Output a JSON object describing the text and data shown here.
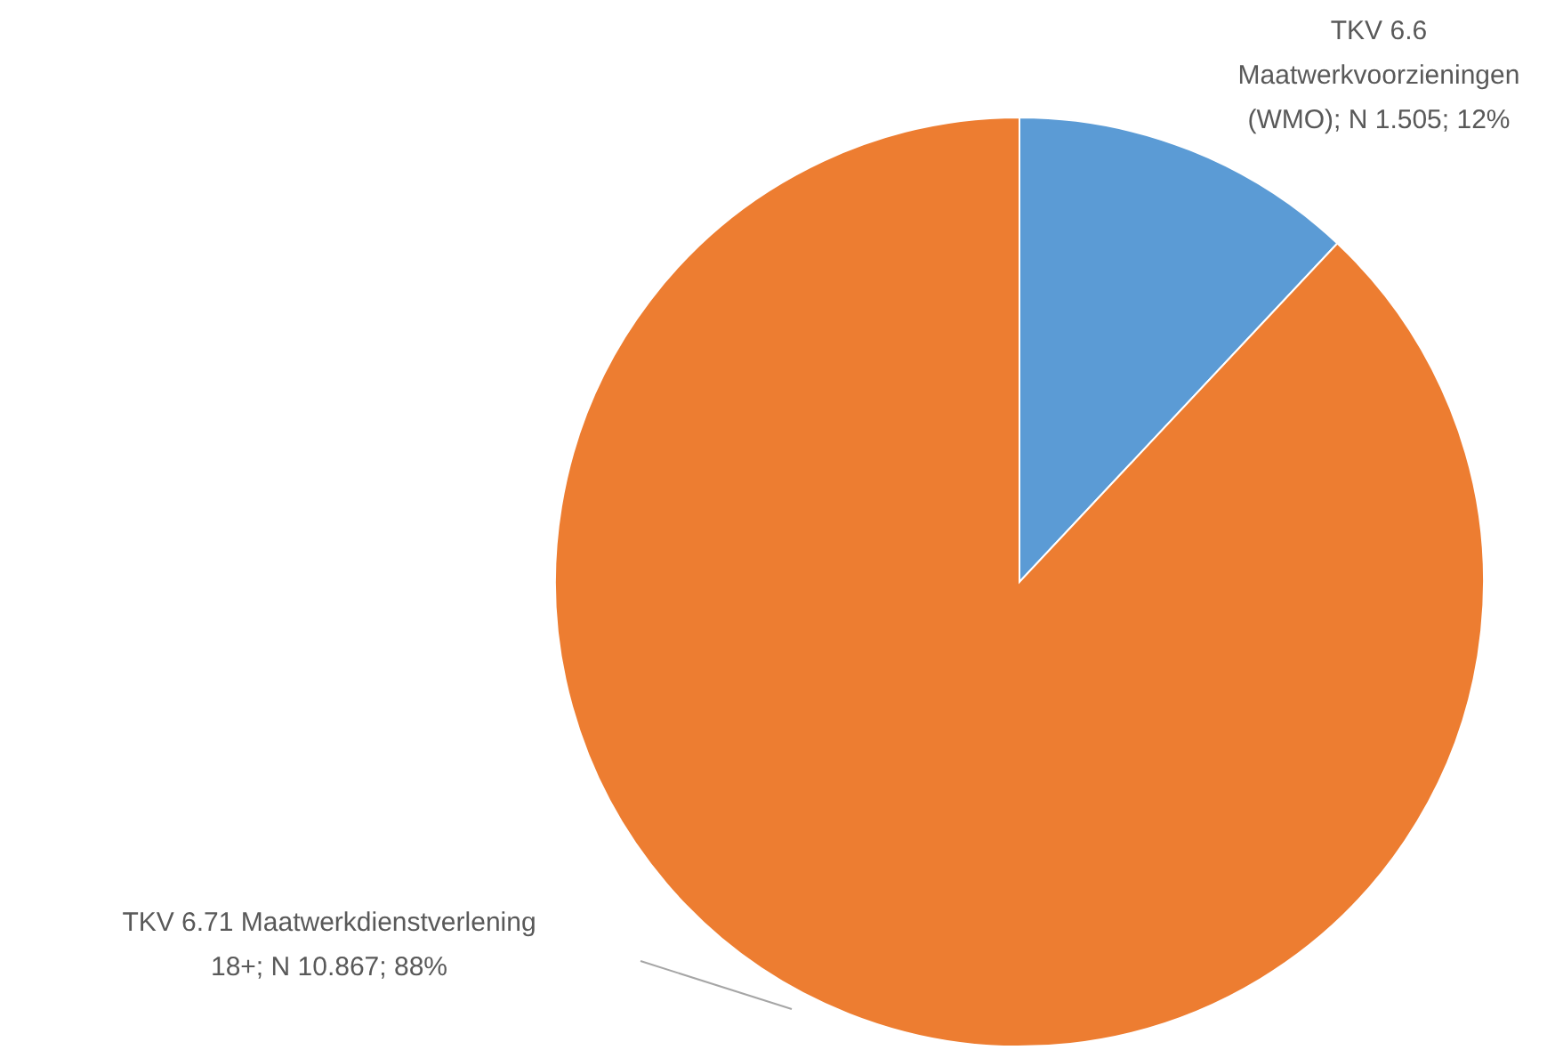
{
  "chart_data": {
    "type": "pie",
    "categories": [
      "TKV 6.6 Maatwerkvoorzieningen (WMO)",
      "TKV 6.71 Maatwerkdienstverlening 18+"
    ],
    "values": [
      12,
      88
    ],
    "value_labels": [
      "N 1.505; 12%",
      "N 10.867; 88%"
    ],
    "colors": [
      "#5b9bd5",
      "#ed7d31"
    ]
  }
}
